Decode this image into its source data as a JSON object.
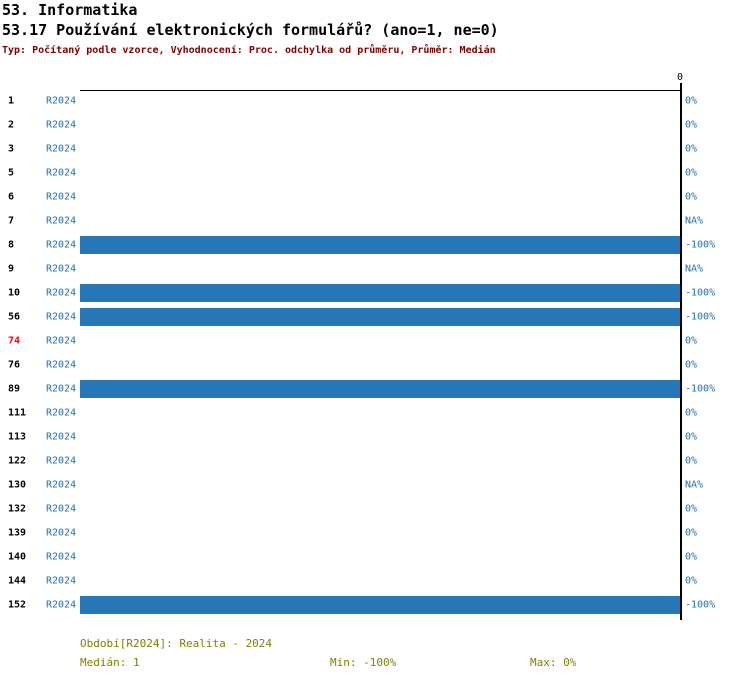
{
  "header": {
    "category": "53. Informatika",
    "title": "53.17 Používání elektronických formulářů? (ano=1, ne=0)",
    "meta": "Typ: Počítaný podle vzorce, Vyhodnocení: Proc. odchylka od průměru, Průměr: Medián"
  },
  "colors": {
    "bar_blue": "#2577b5",
    "link_blue": "#1f6fb5",
    "meta_maroon": "#800000",
    "footer_olive": "#808000",
    "highlight_red": "#ff0000"
  },
  "chart_data": {
    "type": "bar",
    "orientation": "horizontal",
    "title": "53.17 Používání elektronických formulářů? (ano=1, ne=0)",
    "xlabel": "",
    "ylabel": "",
    "xlim": [
      -100,
      0
    ],
    "axis_zero_label": "0",
    "grid": false,
    "legend_position": "none",
    "period_label": "R2024",
    "categories": [
      "1",
      "2",
      "3",
      "5",
      "6",
      "7",
      "8",
      "9",
      "10",
      "56",
      "74",
      "76",
      "89",
      "111",
      "113",
      "122",
      "130",
      "132",
      "139",
      "140",
      "144",
      "152"
    ],
    "series": [
      {
        "name": "R2024",
        "values": [
          0,
          0,
          0,
          0,
          0,
          null,
          -100,
          null,
          -100,
          -100,
          0,
          0,
          -100,
          0,
          0,
          0,
          null,
          0,
          0,
          0,
          0,
          -100
        ]
      }
    ],
    "rows": [
      {
        "num": "1",
        "value": 0,
        "label": "0%",
        "highlight": false
      },
      {
        "num": "2",
        "value": 0,
        "label": "0%",
        "highlight": false
      },
      {
        "num": "3",
        "value": 0,
        "label": "0%",
        "highlight": false
      },
      {
        "num": "5",
        "value": 0,
        "label": "0%",
        "highlight": false
      },
      {
        "num": "6",
        "value": 0,
        "label": "0%",
        "highlight": false
      },
      {
        "num": "7",
        "value": null,
        "label": "NA%",
        "highlight": false
      },
      {
        "num": "8",
        "value": -100,
        "label": "-100%",
        "highlight": false
      },
      {
        "num": "9",
        "value": null,
        "label": "NA%",
        "highlight": false
      },
      {
        "num": "10",
        "value": -100,
        "label": "-100%",
        "highlight": false
      },
      {
        "num": "56",
        "value": -100,
        "label": "-100%",
        "highlight": false
      },
      {
        "num": "74",
        "value": 0,
        "label": "0%",
        "highlight": true
      },
      {
        "num": "76",
        "value": 0,
        "label": "0%",
        "highlight": false
      },
      {
        "num": "89",
        "value": -100,
        "label": "-100%",
        "highlight": false
      },
      {
        "num": "111",
        "value": 0,
        "label": "0%",
        "highlight": false
      },
      {
        "num": "113",
        "value": 0,
        "label": "0%",
        "highlight": false
      },
      {
        "num": "122",
        "value": 0,
        "label": "0%",
        "highlight": false
      },
      {
        "num": "130",
        "value": null,
        "label": "NA%",
        "highlight": false
      },
      {
        "num": "132",
        "value": 0,
        "label": "0%",
        "highlight": false
      },
      {
        "num": "139",
        "value": 0,
        "label": "0%",
        "highlight": false
      },
      {
        "num": "140",
        "value": 0,
        "label": "0%",
        "highlight": false
      },
      {
        "num": "144",
        "value": 0,
        "label": "0%",
        "highlight": false
      },
      {
        "num": "152",
        "value": -100,
        "label": "-100%",
        "highlight": false
      }
    ]
  },
  "footer": {
    "period": "Období[R2024]: Realita - 2024",
    "median": "Medián: 1",
    "min": "Min: -100%",
    "max": "Max: 0%"
  }
}
